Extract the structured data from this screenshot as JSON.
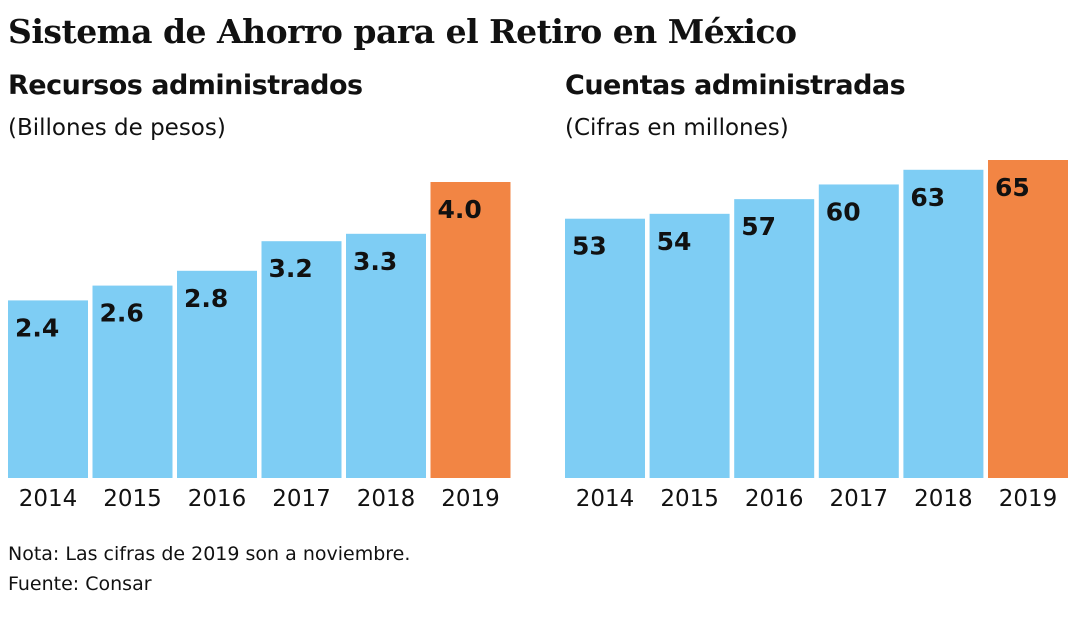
{
  "title": "Sistema de Ahorro para el Retiro en México",
  "note": "Nota: Las cifras de 2019 son a noviembre.",
  "source": "Fuente: Consar",
  "colors": {
    "bar": "#7ecdf4",
    "highlight": "#f28544"
  },
  "chart_data": [
    {
      "type": "bar",
      "title": "Recursos administrados",
      "subtitle": "(Billones de pesos)",
      "categories": [
        "2014",
        "2015",
        "2016",
        "2017",
        "2018",
        "2019"
      ],
      "values": [
        2.4,
        2.6,
        2.8,
        3.2,
        3.3,
        4.0
      ],
      "value_labels": [
        "2.4",
        "2.6",
        "2.8",
        "3.2",
        "3.3",
        "4.0"
      ],
      "highlight_index": 5,
      "ylim": [
        0,
        4.0
      ]
    },
    {
      "type": "bar",
      "title": "Cuentas administradas",
      "subtitle": "(Cifras en millones)",
      "categories": [
        "2014",
        "2015",
        "2016",
        "2017",
        "2018",
        "2019"
      ],
      "values": [
        53,
        54,
        57,
        60,
        63,
        65
      ],
      "value_labels": [
        "53",
        "54",
        "57",
        "60",
        "63",
        "65"
      ],
      "highlight_index": 5,
      "ylim": [
        0,
        65
      ]
    }
  ]
}
